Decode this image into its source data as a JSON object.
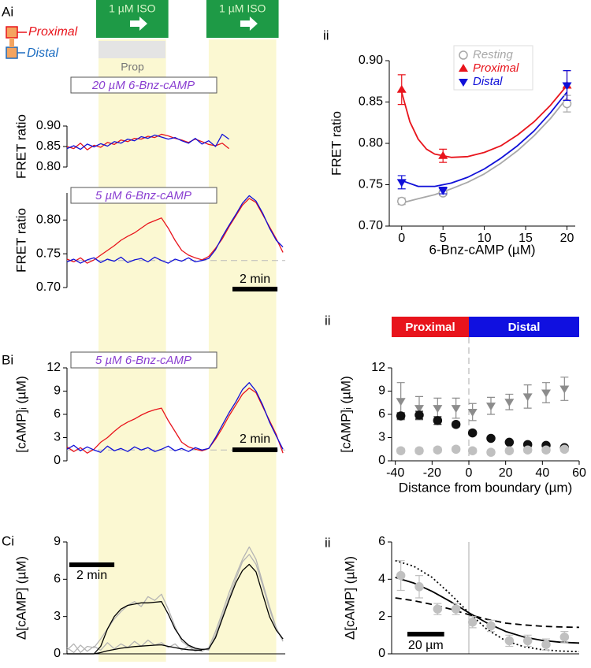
{
  "panels": [
    "Ai",
    "ii",
    "Bi",
    "ii",
    "Ci",
    "ii"
  ],
  "schematic": {
    "proximal": "Proximal",
    "distal": "Distal",
    "prop": "Prop"
  },
  "iso": [
    {
      "label": "1 µM ISO",
      "start": 1.4,
      "end": 4.4
    },
    {
      "label": "1 µM ISO",
      "start": 6.3,
      "end": 9.3
    }
  ],
  "chart_data": [
    {
      "type": "line",
      "title": "20 µM 6-Bnz-cAMP",
      "ylabel": "FRET ratio",
      "x_axis": false,
      "x": [
        0,
        0.3,
        0.6,
        0.9,
        1.2,
        1.5,
        1.8,
        2.1,
        2.4,
        2.7,
        3.0,
        3.3,
        3.6,
        3.9,
        4.2,
        4.5,
        4.8,
        5.1,
        5.4,
        5.7,
        6.0,
        6.3,
        6.6,
        6.9,
        7.2
      ],
      "xlim": [
        0,
        9.7
      ],
      "ylim": [
        0.8,
        0.9
      ],
      "yticks": [
        {
          "value": 0.8,
          "label": "0.80"
        },
        {
          "value": 0.85,
          "label": "0.85"
        },
        {
          "value": 0.9,
          "label": "0.90"
        }
      ],
      "series": [
        {
          "color": "#e8141c",
          "values": [
            0.85,
            0.845,
            0.858,
            0.842,
            0.853,
            0.848,
            0.86,
            0.855,
            0.866,
            0.862,
            0.87,
            0.868,
            0.875,
            0.872,
            0.88,
            0.876,
            0.87,
            0.866,
            0.86,
            0.868,
            0.862,
            0.855,
            0.852,
            0.858,
            0.845
          ]
        },
        {
          "color": "#1010d8",
          "values": [
            0.845,
            0.852,
            0.843,
            0.856,
            0.849,
            0.857,
            0.851,
            0.862,
            0.858,
            0.868,
            0.864,
            0.874,
            0.87,
            0.878,
            0.873,
            0.868,
            0.872,
            0.864,
            0.858,
            0.87,
            0.856,
            0.864,
            0.85,
            0.88,
            0.868
          ]
        }
      ]
    },
    {
      "type": "line",
      "title": "5 µM 6-Bnz-cAMP",
      "ylabel": "FRET ratio",
      "x_axis": false,
      "x": [
        0,
        0.3,
        0.6,
        0.9,
        1.2,
        1.5,
        1.8,
        2.1,
        2.4,
        2.7,
        3.0,
        3.3,
        3.6,
        3.9,
        4.2,
        4.5,
        4.8,
        5.1,
        5.4,
        5.7,
        6.0,
        6.3,
        6.6,
        6.9,
        7.2,
        7.5,
        7.8,
        8.1,
        8.4,
        8.7,
        9.0,
        9.3,
        9.6
      ],
      "xlim": [
        0,
        9.7
      ],
      "ylim": [
        0.7,
        0.84
      ],
      "yticks": [
        {
          "value": 0.7,
          "label": "0.70"
        },
        {
          "value": 0.75,
          "label": "0.75"
        },
        {
          "value": 0.8,
          "label": "0.80"
        }
      ],
      "baseline": 0.74,
      "scalebar": {
        "value": 2,
        "label": "2 min"
      },
      "series": [
        {
          "color": "#e8141c",
          "values": [
            0.742,
            0.738,
            0.744,
            0.736,
            0.741,
            0.748,
            0.755,
            0.762,
            0.77,
            0.776,
            0.781,
            0.788,
            0.795,
            0.799,
            0.803,
            0.788,
            0.77,
            0.755,
            0.748,
            0.744,
            0.741,
            0.746,
            0.758,
            0.772,
            0.79,
            0.806,
            0.822,
            0.832,
            0.826,
            0.808,
            0.79,
            0.772,
            0.752
          ]
        },
        {
          "color": "#1010d8",
          "values": [
            0.738,
            0.742,
            0.736,
            0.741,
            0.744,
            0.737,
            0.742,
            0.739,
            0.745,
            0.737,
            0.741,
            0.743,
            0.738,
            0.745,
            0.74,
            0.736,
            0.742,
            0.739,
            0.744,
            0.738,
            0.74,
            0.743,
            0.756,
            0.775,
            0.792,
            0.808,
            0.825,
            0.836,
            0.828,
            0.81,
            0.788,
            0.77,
            0.76
          ]
        }
      ]
    },
    {
      "type": "scatter",
      "xlabel": "6-Bnz-cAMP (µM)",
      "ylabel": "FRET ratio",
      "legend": "upper right",
      "x": [
        0,
        5,
        20
      ],
      "xlim": [
        -1.5,
        21
      ],
      "ylim": [
        0.7,
        0.9
      ],
      "xticks": [
        0,
        5,
        10,
        15,
        20
      ],
      "yticks": [
        {
          "value": 0.7,
          "label": "0.70"
        },
        {
          "value": 0.75,
          "label": "0.75"
        },
        {
          "value": 0.8,
          "label": "0.80"
        },
        {
          "value": 0.85,
          "label": "0.85"
        },
        {
          "value": 0.9,
          "label": "0.90"
        }
      ],
      "series": [
        {
          "name": "Resting",
          "color": "#a8a8a8",
          "marker": "circle-open",
          "values": [
            0.73,
            0.74,
            0.848
          ],
          "errors": [
            0.004,
            0.003,
            0.01
          ]
        },
        {
          "name": "Proximal",
          "color": "#e8141c",
          "marker": "triangle-up",
          "values": [
            0.865,
            0.785,
            0.87
          ],
          "errors": [
            0.018,
            0.008,
            0.018
          ]
        },
        {
          "name": "Distal",
          "color": "#1010d8",
          "marker": "triangle-down",
          "values": [
            0.753,
            0.743,
            0.87
          ],
          "errors": [
            0.008,
            0.004,
            0.018
          ]
        }
      ],
      "fits": [
        {
          "color": "#a8a8a8",
          "dash": "solid",
          "x": [
            0,
            2,
            4,
            6,
            8,
            10,
            12,
            14,
            16,
            18,
            20
          ],
          "values": [
            0.728,
            0.733,
            0.738,
            0.745,
            0.753,
            0.763,
            0.776,
            0.791,
            0.809,
            0.83,
            0.855
          ]
        },
        {
          "color": "#e8141c",
          "dash": "solid",
          "x": [
            0,
            1,
            2,
            3,
            4,
            6,
            8,
            10,
            12,
            14,
            16,
            18,
            20
          ],
          "values": [
            0.862,
            0.826,
            0.805,
            0.793,
            0.787,
            0.783,
            0.784,
            0.789,
            0.797,
            0.81,
            0.826,
            0.846,
            0.87
          ]
        },
        {
          "color": "#1010d8",
          "dash": "solid",
          "x": [
            0,
            2,
            4,
            6,
            8,
            10,
            12,
            14,
            16,
            18,
            20
          ],
          "values": [
            0.755,
            0.748,
            0.748,
            0.752,
            0.759,
            0.769,
            0.782,
            0.797,
            0.815,
            0.837,
            0.862
          ]
        }
      ]
    },
    {
      "type": "line",
      "title": "5 µM 6-Bnz-cAMP",
      "ylabel": "[cAMP]ᵢ (µM)",
      "x_axis": false,
      "x": [
        0,
        0.3,
        0.6,
        0.9,
        1.2,
        1.5,
        1.8,
        2.1,
        2.4,
        2.7,
        3.0,
        3.3,
        3.6,
        3.9,
        4.2,
        4.5,
        4.8,
        5.1,
        5.4,
        5.7,
        6.0,
        6.3,
        6.6,
        6.9,
        7.2,
        7.5,
        7.8,
        8.1,
        8.4,
        8.7,
        9.0,
        9.3,
        9.6
      ],
      "xlim": [
        0,
        9.7
      ],
      "ylim": [
        0,
        12
      ],
      "yticks": [
        0,
        3,
        6,
        9,
        12
      ],
      "baseline": 1.4,
      "scalebar": {
        "value": 2,
        "label": "2 min"
      },
      "series": [
        {
          "color": "#e8141c",
          "values": [
            1.8,
            1.2,
            1.7,
            1.0,
            1.5,
            2.4,
            3.0,
            3.8,
            4.5,
            5.0,
            5.4,
            5.9,
            6.3,
            6.6,
            6.8,
            5.2,
            3.8,
            2.4,
            1.8,
            1.5,
            1.3,
            1.6,
            2.8,
            4.2,
            5.8,
            7.2,
            8.6,
            9.4,
            8.8,
            7.0,
            5.2,
            3.4,
            1.0
          ]
        },
        {
          "color": "#1010d8",
          "values": [
            1.5,
            2.0,
            1.3,
            1.8,
            1.4,
            1.1,
            1.9,
            1.3,
            1.6,
            1.2,
            1.8,
            1.4,
            1.7,
            1.2,
            1.5,
            1.9,
            1.3,
            1.6,
            1.2,
            1.7,
            1.4,
            1.6,
            3.0,
            4.6,
            6.2,
            7.6,
            9.2,
            10.1,
            9.0,
            7.2,
            5.0,
            3.2,
            1.5
          ]
        }
      ]
    },
    {
      "type": "scatter",
      "xlabel": "Distance from boundary (µm)",
      "ylabel": "[cAMP]ᵢ (µM)",
      "x": [
        -37,
        -27,
        -17,
        -7,
        2,
        12,
        22,
        32,
        42,
        52
      ],
      "xlim": [
        -42,
        60
      ],
      "ylim": [
        0,
        12
      ],
      "xticks": [
        -40,
        -20,
        0,
        20,
        40,
        60
      ],
      "yticks": [
        0,
        3,
        6,
        9,
        12
      ],
      "boundary": 0,
      "boundary_line": "dashed",
      "regions": [
        {
          "label": "Proximal",
          "color": "#e8141c"
        },
        {
          "label": "Distal",
          "color": "#1010e0"
        }
      ],
      "series": [
        {
          "color": "#8c8c8c",
          "marker": "triangle-down",
          "values": [
            7.7,
            6.8,
            6.8,
            6.8,
            6.3,
            7.1,
            7.6,
            8.3,
            8.8,
            9.3
          ],
          "errors": [
            2.4,
            1.5,
            1.3,
            1.3,
            1.1,
            1.1,
            1.0,
            1.5,
            1.3,
            1.5
          ]
        },
        {
          "color": "#111111",
          "marker": "circle",
          "values": [
            5.8,
            5.9,
            5.2,
            4.7,
            3.6,
            2.9,
            2.4,
            2.1,
            2.0,
            1.7
          ],
          "errors": [
            0.4,
            0.5,
            0.5,
            0.3,
            0.2,
            0.2,
            0.2,
            0.2,
            0.2,
            0.2
          ]
        },
        {
          "color": "#c0c0c0",
          "marker": "circle",
          "values": [
            1.3,
            1.3,
            1.4,
            1.5,
            1.3,
            1.1,
            1.3,
            1.4,
            1.4,
            1.5
          ],
          "errors": [
            0.3,
            0.3,
            0.3,
            0.3,
            0.3,
            0.3,
            0.3,
            0.3,
            0.3,
            0.3
          ]
        }
      ]
    },
    {
      "type": "line",
      "ylabel": "Δ[cAMP] (µM)",
      "x": [
        0,
        0.3,
        0.6,
        0.9,
        1.2,
        1.5,
        1.8,
        2.1,
        2.4,
        2.7,
        3.0,
        3.3,
        3.6,
        3.9,
        4.2,
        4.5,
        4.8,
        5.1,
        5.4,
        5.7,
        6.0,
        6.3,
        6.6,
        6.9,
        7.2,
        7.5,
        7.8,
        8.1,
        8.4,
        8.7,
        9.0,
        9.3,
        9.6
      ],
      "xlim": [
        0,
        9.7
      ],
      "ylim": [
        0,
        9
      ],
      "yticks": [
        0,
        3,
        6,
        9
      ],
      "scalebar": {
        "value": 2,
        "label": "2 min"
      },
      "series": [
        {
          "color": "#b4b4b4",
          "values": [
            0.3,
            0.8,
            0.1,
            0.6,
            0.5,
            1.2,
            2.0,
            2.8,
            3.4,
            3.9,
            4.2,
            3.8,
            4.6,
            4.3,
            4.8,
            3.6,
            2.2,
            1.0,
            0.6,
            0.2,
            0.4,
            0.3,
            1.5,
            3.0,
            4.5,
            6.0,
            7.4,
            8.0,
            7.2,
            5.5,
            3.6,
            2.0,
            1.2
          ]
        },
        {
          "color": "#b4b4b4",
          "values": [
            0.5,
            0.1,
            0.7,
            0.2,
            0.6,
            0.3,
            0.9,
            0.4,
            0.8,
            0.5,
            1.0,
            0.6,
            1.1,
            0.7,
            0.9,
            0.5,
            0.8,
            0.3,
            0.6,
            0.4,
            0.2,
            0.5,
            1.8,
            3.3,
            4.9,
            6.3,
            7.6,
            8.6,
            7.6,
            5.7,
            3.8,
            2.1,
            1.0
          ]
        },
        {
          "color": "#000000",
          "values": [
            0,
            0,
            0,
            0,
            0,
            0.6,
            2.0,
            3.0,
            3.6,
            3.9,
            4.0,
            4.1,
            4.1,
            4.15,
            4.2,
            3.2,
            2.0,
            1.2,
            0.7,
            0.45,
            0.35,
            0.4,
            1.3,
            2.8,
            4.3,
            5.7,
            6.7,
            7.2,
            6.6,
            4.8,
            3.0,
            1.9,
            1.2
          ]
        },
        {
          "color": "#000000",
          "values": [
            0,
            0,
            0,
            0,
            0,
            0.1,
            0.25,
            0.35,
            0.45,
            0.52,
            0.58,
            0.62,
            0.66,
            0.7,
            0.72,
            0.6,
            0.5,
            0.4,
            0.33,
            0.3,
            0.28,
            null,
            null,
            null,
            null,
            null,
            null,
            null,
            null,
            null,
            null,
            null,
            null
          ]
        }
      ]
    },
    {
      "type": "scatter",
      "ylabel": "Δ[cAMP] (µM)",
      "x": [
        -37,
        -27,
        -17,
        -7,
        2,
        12,
        22,
        32,
        42,
        52
      ],
      "xlim": [
        -42,
        60
      ],
      "ylim": [
        0,
        6
      ],
      "yticks": [
        0,
        2,
        4,
        6
      ],
      "boundary": 0,
      "boundary_line": "solid",
      "scalebar": {
        "value": 20,
        "label": "20 µm"
      },
      "series": [
        {
          "color": "#c0c0c0",
          "marker": "circle",
          "values": [
            4.2,
            3.6,
            2.4,
            2.4,
            1.7,
            1.5,
            0.7,
            0.7,
            0.5,
            0.9
          ],
          "errors": [
            0.8,
            0.6,
            0.3,
            0.3,
            0.3,
            0.3,
            0.3,
            0.3,
            0.3,
            0.3
          ]
        }
      ],
      "fits": [
        {
          "color": "#000000",
          "dash": "solid",
          "x": [
            -40,
            -30,
            -20,
            -10,
            0,
            10,
            20,
            30,
            40,
            50,
            60
          ],
          "values": [
            4.1,
            3.8,
            3.35,
            2.8,
            2.2,
            1.65,
            1.2,
            0.9,
            0.72,
            0.62,
            0.58
          ]
        },
        {
          "color": "#000000",
          "dash": "dashed",
          "x": [
            -40,
            -30,
            -20,
            -10,
            0,
            10,
            20,
            30,
            40,
            50,
            60
          ],
          "values": [
            3.0,
            2.85,
            2.65,
            2.4,
            2.1,
            1.85,
            1.65,
            1.55,
            1.48,
            1.44,
            1.42
          ]
        },
        {
          "color": "#000000",
          "dash": "dotted",
          "x": [
            -40,
            -30,
            -20,
            -10,
            0,
            10,
            20,
            30,
            40,
            50,
            60
          ],
          "values": [
            5.0,
            4.7,
            4.1,
            3.2,
            2.2,
            1.3,
            0.7,
            0.38,
            0.22,
            0.15,
            0.12
          ]
        }
      ]
    }
  ]
}
